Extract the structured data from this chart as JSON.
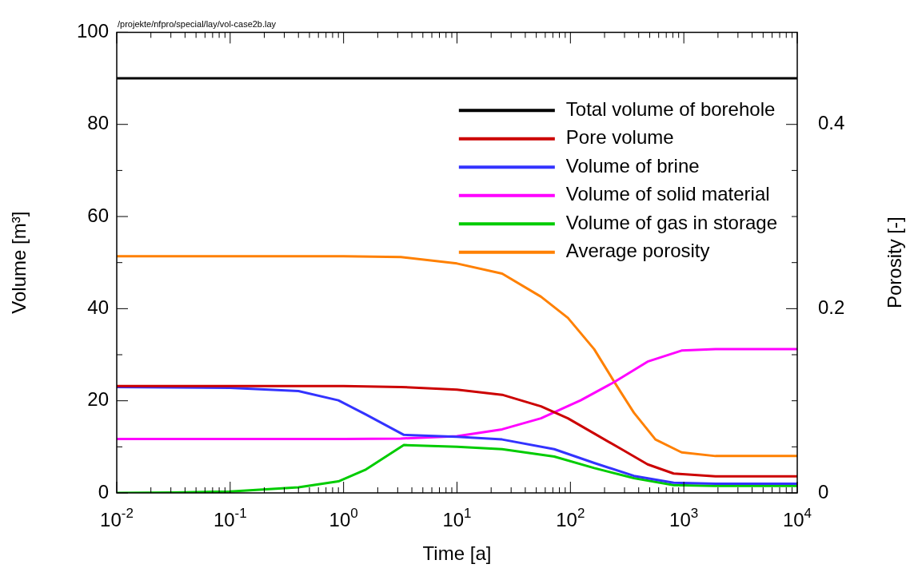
{
  "chart_data": {
    "type": "line",
    "xlabel": "Time [a]",
    "ylabel": "Volume [m³]",
    "y2label": "Porosity [-]",
    "annotations": [
      "/projekte/nfpro/special/lay/vol-case2b.lay"
    ],
    "log": "x",
    "grid": false,
    "legend": "top right",
    "marker": "none",
    "line_style": "solid",
    "xlim": [
      0.01,
      10000
    ],
    "xticks": [
      {
        "value": 0.01,
        "label": "10$^{-2}$"
      },
      {
        "value": 0.1,
        "label": "10$^{-1}$"
      },
      {
        "value": 1,
        "label": "10$^{0}$"
      },
      {
        "value": 10,
        "label": "10$^{1}$"
      },
      {
        "value": 100,
        "label": "10$^{2}$"
      },
      {
        "value": 1000,
        "label": "10$^{3}$"
      },
      {
        "value": 10000,
        "label": "10$^{4}$"
      }
    ],
    "ylim": [
      0,
      100
    ],
    "yticks": [
      0,
      20,
      40,
      60,
      80,
      100
    ],
    "y2lim": [
      0,
      0.5
    ],
    "y2ticks": [
      0,
      0.2,
      0.4
    ],
    "series": [
      {
        "name": "Total volume of borehole",
        "color": "#000000",
        "x": [
          0.01,
          10000
        ],
        "values": [
          90,
          90
        ]
      },
      {
        "name": "Pore volume",
        "color": "#cc0000",
        "x": [
          0.01,
          1,
          3.2,
          10,
          25,
          55,
          95,
          162,
          282,
          479,
          813,
          1900,
          10000
        ],
        "values": [
          23.2,
          23.2,
          23.0,
          22.4,
          21.3,
          18.8,
          16.2,
          12.9,
          9.5,
          6.2,
          4.2,
          3.6,
          3.6
        ]
      },
      {
        "name": "Volume of brine",
        "color": "#3333ff",
        "x": [
          0.01,
          0.1,
          0.4,
          0.9,
          1.55,
          3.4,
          10,
          25,
          72,
          162,
          363,
          813,
          1900,
          10000
        ],
        "values": [
          23.0,
          22.8,
          22.1,
          20.1,
          17.1,
          12.6,
          12.2,
          11.6,
          9.5,
          6.5,
          3.7,
          2.2,
          2.0,
          2.0
        ]
      },
      {
        "name": "Volume of solid material",
        "color": "#ff00ff",
        "x": [
          0.01,
          1,
          3.2,
          10,
          25,
          55,
          123,
          245,
          479,
          955,
          1900,
          10000
        ],
        "values": [
          11.7,
          11.7,
          11.8,
          12.3,
          13.8,
          16.2,
          20.1,
          24.1,
          28.5,
          30.9,
          31.2,
          31.2
        ]
      },
      {
        "name": "Volume of gas in storage",
        "color": "#00cc00",
        "x": [
          0.01,
          0.0316,
          0.1,
          0.4,
          0.9,
          1.55,
          3.4,
          10,
          25,
          72,
          162,
          363,
          813,
          1900,
          10000
        ],
        "values": [
          0,
          0.1,
          0.3,
          1.2,
          2.5,
          5.0,
          10.4,
          10.0,
          9.5,
          7.9,
          5.4,
          3.2,
          1.7,
          1.5,
          1.5
        ]
      },
      {
        "name": "Average porosity",
        "color": "#ff8000",
        "axis": "y2",
        "x": [
          0.01,
          1,
          3.2,
          10,
          25,
          55,
          95,
          162,
          245,
          363,
          562,
          955,
          1900,
          10000
        ],
        "values": [
          0.257,
          0.257,
          0.256,
          0.249,
          0.238,
          0.213,
          0.19,
          0.156,
          0.12,
          0.087,
          0.058,
          0.044,
          0.04,
          0.04
        ]
      }
    ]
  }
}
